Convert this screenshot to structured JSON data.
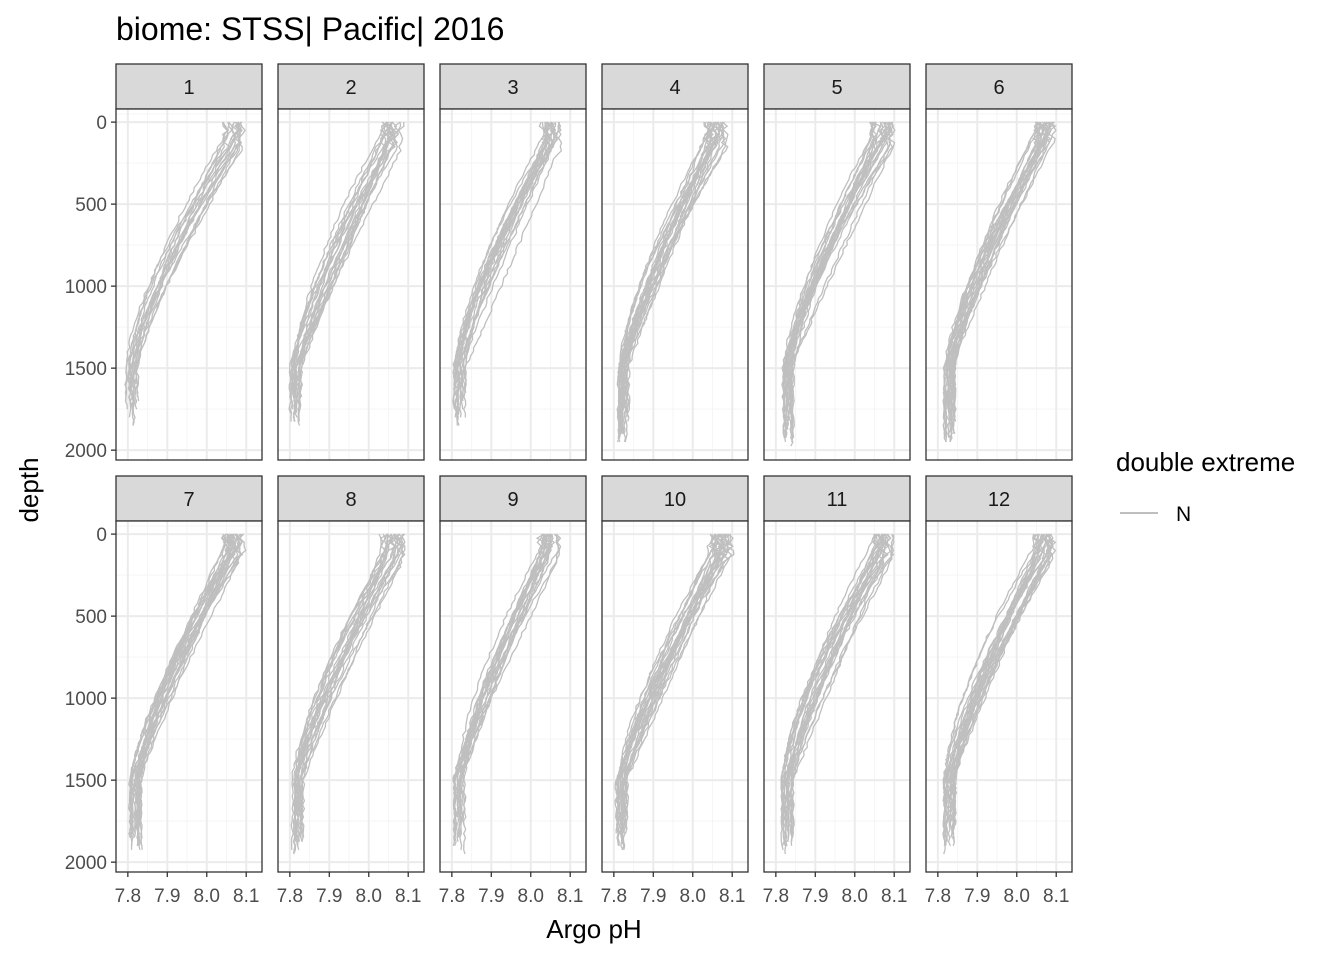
{
  "chart_data": {
    "type": "line",
    "title": "biome: STSS| Pacific| 2016",
    "xlabel": "Argo pH",
    "ylabel": "depth",
    "xlim": [
      7.77,
      8.14
    ],
    "ylim": [
      2060,
      -80
    ],
    "y_reversed": true,
    "x_ticks": [
      7.8,
      7.9,
      8.0,
      8.1
    ],
    "x_tick_labels": [
      "7.8",
      "7.9",
      "8.0",
      "8.1"
    ],
    "y_ticks": [
      0,
      500,
      1000,
      1500,
      2000
    ],
    "y_tick_labels": [
      "0",
      "500",
      "1000",
      "1500",
      "2000"
    ],
    "grid": true,
    "facet_layout": {
      "rows": 2,
      "cols": 6
    },
    "facets": [
      {
        "label": "1",
        "surface_ph": 8.07,
        "deep_ph": 7.81,
        "max_depth": 1870,
        "n_profiles": 16
      },
      {
        "label": "2",
        "surface_ph": 8.06,
        "deep_ph": 7.815,
        "max_depth": 1870,
        "n_profiles": 20
      },
      {
        "label": "3",
        "surface_ph": 8.05,
        "deep_ph": 7.82,
        "max_depth": 1870,
        "n_profiles": 20
      },
      {
        "label": "4",
        "surface_ph": 8.06,
        "deep_ph": 7.825,
        "max_depth": 1980,
        "n_profiles": 24
      },
      {
        "label": "5",
        "surface_ph": 8.07,
        "deep_ph": 7.83,
        "max_depth": 1980,
        "n_profiles": 22
      },
      {
        "label": "6",
        "surface_ph": 8.07,
        "deep_ph": 7.83,
        "max_depth": 1980,
        "n_profiles": 24
      },
      {
        "label": "7",
        "surface_ph": 8.07,
        "deep_ph": 7.82,
        "max_depth": 1960,
        "n_profiles": 24
      },
      {
        "label": "8",
        "surface_ph": 8.06,
        "deep_ph": 7.82,
        "max_depth": 1960,
        "n_profiles": 20
      },
      {
        "label": "9",
        "surface_ph": 8.05,
        "deep_ph": 7.82,
        "max_depth": 1960,
        "n_profiles": 20
      },
      {
        "label": "10",
        "surface_ph": 8.07,
        "deep_ph": 7.82,
        "max_depth": 1960,
        "n_profiles": 22
      },
      {
        "label": "11",
        "surface_ph": 8.07,
        "deep_ph": 7.83,
        "max_depth": 1960,
        "n_profiles": 22
      },
      {
        "label": "12",
        "surface_ph": 8.07,
        "deep_ph": 7.83,
        "max_depth": 1960,
        "n_profiles": 24
      }
    ],
    "series": [
      {
        "name": "N",
        "color": "#bfbfbf"
      }
    ],
    "legend": {
      "title": "double extreme",
      "position": "right",
      "items": [
        {
          "label": "N",
          "color": "#bfbfbf"
        }
      ]
    }
  },
  "theme": {
    "panel_border": "#333333",
    "grid_major": "#ebebeb",
    "grid_minor": "#f5f5f5",
    "strip_fill": "#d9d9d9",
    "line_color": "#bfbfbf"
  }
}
